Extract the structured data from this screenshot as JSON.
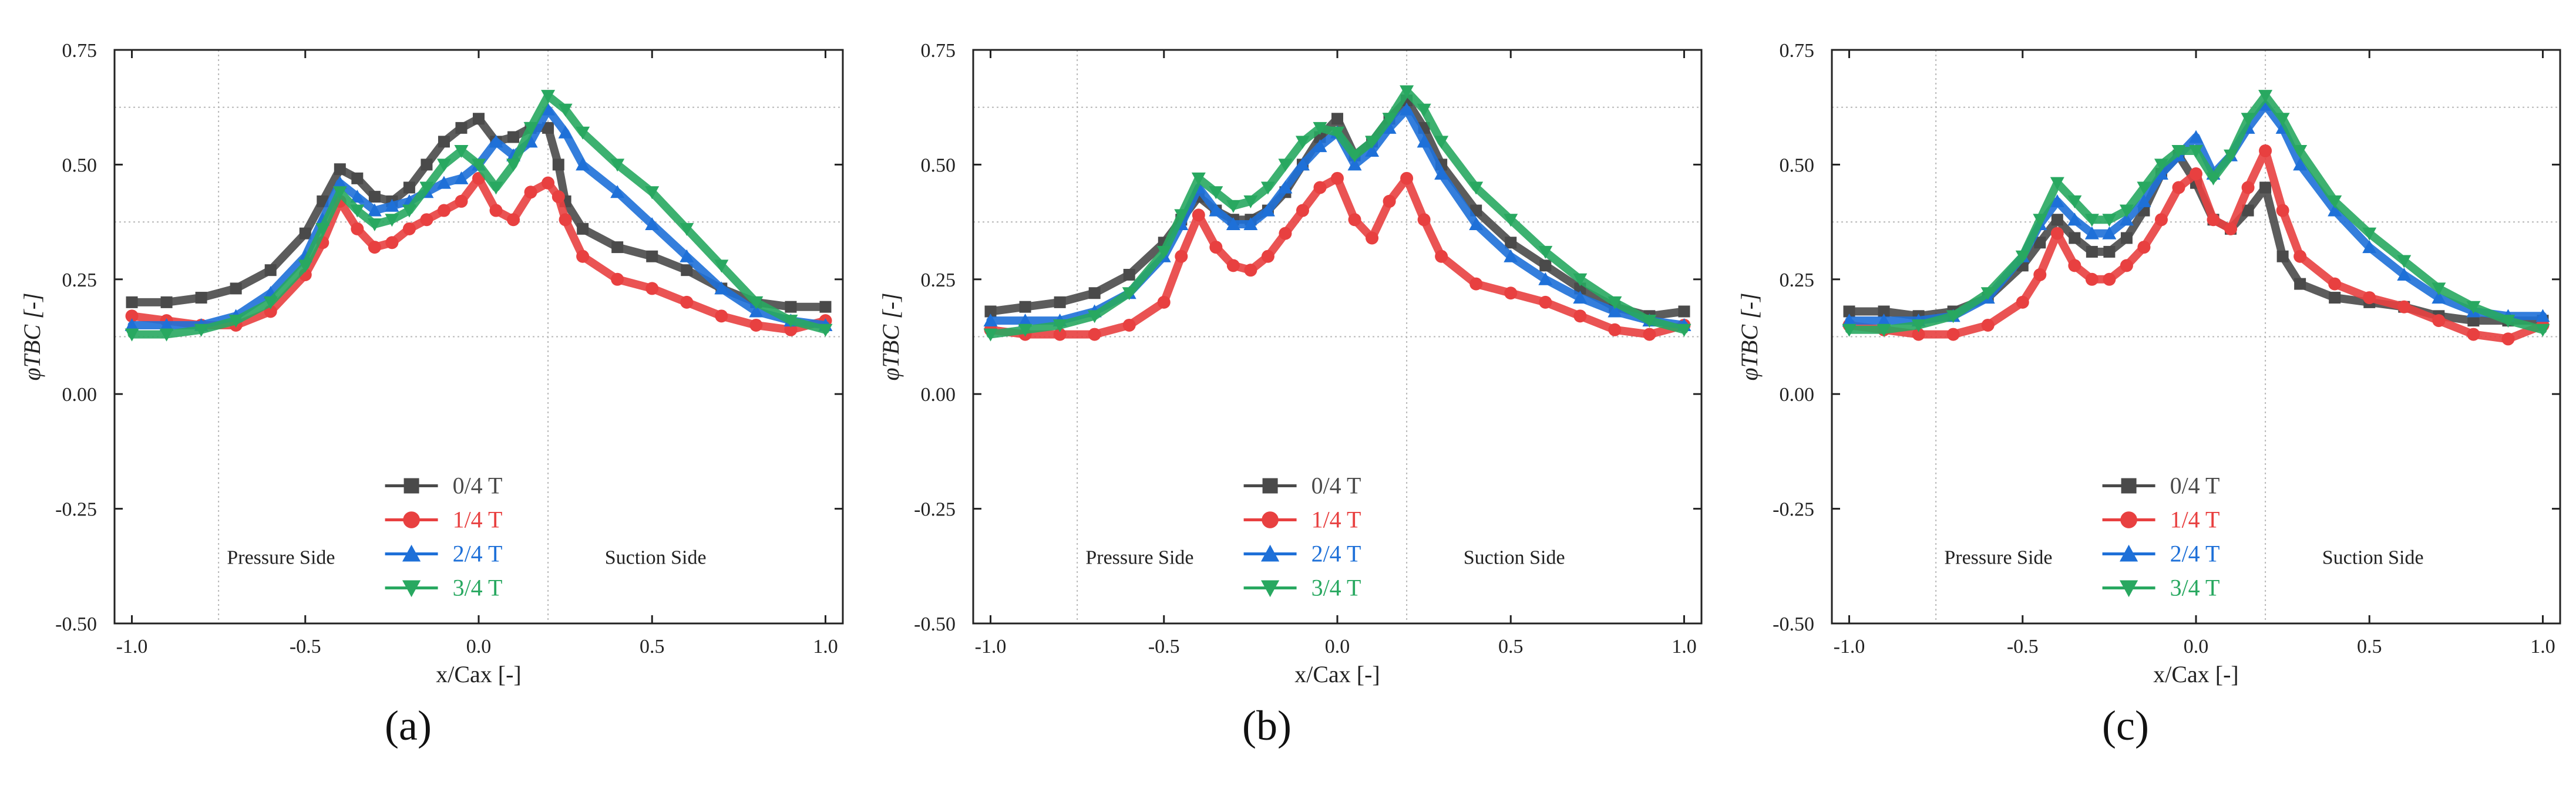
{
  "chart_data": [
    {
      "type": "line",
      "panel_label": "(a)",
      "xlabel": "x/Cax [-]",
      "ylabel": "φTBC [-]",
      "xlim": [
        -1.05,
        1.05
      ],
      "ylim": [
        -0.5,
        0.75
      ],
      "x_ticks": [
        "-1.0",
        "-0.5",
        "0.0",
        "0.5",
        "1.0"
      ],
      "y_ticks": [
        "0.75",
        "0.50",
        "0.25",
        "0.00",
        "-0.25",
        "-0.50"
      ],
      "annotations": [
        "Pressure Side",
        "Suction Side"
      ],
      "reference_lines_y": [
        0.625,
        0.375,
        0.125
      ],
      "reference_lines_x": [
        -0.75,
        0.2
      ],
      "legend_position": "center",
      "series": [
        {
          "name": "0/4 T",
          "color": "#4a4a4a",
          "marker": "square",
          "x": [
            -1.0,
            -0.9,
            -0.8,
            -0.7,
            -0.6,
            -0.5,
            -0.45,
            -0.4,
            -0.35,
            -0.3,
            -0.25,
            -0.2,
            -0.15,
            -0.1,
            -0.05,
            0.0,
            0.05,
            0.1,
            0.15,
            0.2,
            0.23,
            0.25,
            0.3,
            0.4,
            0.5,
            0.6,
            0.7,
            0.8,
            0.9,
            1.0
          ],
          "y": [
            0.2,
            0.2,
            0.21,
            0.23,
            0.27,
            0.35,
            0.42,
            0.49,
            0.47,
            0.43,
            0.42,
            0.45,
            0.5,
            0.55,
            0.58,
            0.6,
            0.55,
            0.56,
            0.58,
            0.58,
            0.5,
            0.42,
            0.36,
            0.32,
            0.3,
            0.27,
            0.23,
            0.2,
            0.19,
            0.19
          ]
        },
        {
          "name": "1/4 T",
          "color": "#e84040",
          "marker": "circle",
          "x": [
            -1.0,
            -0.9,
            -0.8,
            -0.7,
            -0.6,
            -0.5,
            -0.45,
            -0.4,
            -0.35,
            -0.3,
            -0.25,
            -0.2,
            -0.15,
            -0.1,
            -0.05,
            0.0,
            0.05,
            0.1,
            0.15,
            0.2,
            0.23,
            0.25,
            0.3,
            0.4,
            0.5,
            0.6,
            0.7,
            0.8,
            0.9,
            1.0
          ],
          "y": [
            0.17,
            0.16,
            0.15,
            0.15,
            0.18,
            0.26,
            0.33,
            0.42,
            0.36,
            0.32,
            0.33,
            0.36,
            0.38,
            0.4,
            0.42,
            0.47,
            0.4,
            0.38,
            0.44,
            0.46,
            0.43,
            0.38,
            0.3,
            0.25,
            0.23,
            0.2,
            0.17,
            0.15,
            0.14,
            0.16
          ]
        },
        {
          "name": "2/4 T",
          "color": "#1e70d8",
          "marker": "triangle-up",
          "x": [
            -1.0,
            -0.9,
            -0.8,
            -0.7,
            -0.6,
            -0.5,
            -0.45,
            -0.4,
            -0.35,
            -0.3,
            -0.25,
            -0.2,
            -0.15,
            -0.1,
            -0.05,
            0.0,
            0.05,
            0.1,
            0.15,
            0.2,
            0.25,
            0.3,
            0.4,
            0.5,
            0.6,
            0.7,
            0.8,
            0.9,
            1.0
          ],
          "y": [
            0.15,
            0.15,
            0.15,
            0.17,
            0.22,
            0.3,
            0.38,
            0.46,
            0.43,
            0.4,
            0.41,
            0.42,
            0.44,
            0.46,
            0.47,
            0.5,
            0.55,
            0.52,
            0.55,
            0.62,
            0.57,
            0.5,
            0.44,
            0.37,
            0.3,
            0.23,
            0.18,
            0.16,
            0.15
          ]
        },
        {
          "name": "3/4 T",
          "color": "#28a860",
          "marker": "triangle-down",
          "x": [
            -1.0,
            -0.9,
            -0.8,
            -0.7,
            -0.6,
            -0.5,
            -0.45,
            -0.4,
            -0.35,
            -0.3,
            -0.25,
            -0.2,
            -0.15,
            -0.1,
            -0.05,
            0.0,
            0.05,
            0.1,
            0.15,
            0.2,
            0.25,
            0.3,
            0.4,
            0.5,
            0.6,
            0.7,
            0.8,
            0.9,
            1.0
          ],
          "y": [
            0.13,
            0.13,
            0.14,
            0.16,
            0.2,
            0.28,
            0.36,
            0.44,
            0.4,
            0.37,
            0.38,
            0.4,
            0.45,
            0.5,
            0.53,
            0.5,
            0.45,
            0.5,
            0.58,
            0.65,
            0.62,
            0.57,
            0.5,
            0.44,
            0.36,
            0.28,
            0.2,
            0.16,
            0.14
          ]
        }
      ]
    },
    {
      "type": "line",
      "panel_label": "(b)",
      "xlabel": "x/Cax [-]",
      "ylabel": "φTBC [-]",
      "xlim": [
        -1.05,
        1.05
      ],
      "ylim": [
        -0.5,
        0.75
      ],
      "x_ticks": [
        "-1.0",
        "-0.5",
        "0.0",
        "0.5",
        "1.0"
      ],
      "y_ticks": [
        "0.75",
        "0.50",
        "0.25",
        "0.00",
        "-0.25",
        "-0.50"
      ],
      "annotations": [
        "Pressure Side",
        "Suction Side"
      ],
      "reference_lines_y": [
        0.625,
        0.375,
        0.125
      ],
      "reference_lines_x": [
        -0.75,
        0.2
      ],
      "legend_position": "center",
      "series": [
        {
          "name": "0/4 T",
          "color": "#4a4a4a",
          "marker": "square",
          "x": [
            -1.0,
            -0.9,
            -0.8,
            -0.7,
            -0.6,
            -0.5,
            -0.45,
            -0.4,
            -0.35,
            -0.3,
            -0.25,
            -0.2,
            -0.15,
            -0.1,
            -0.05,
            0.0,
            0.05,
            0.1,
            0.15,
            0.2,
            0.25,
            0.3,
            0.4,
            0.5,
            0.6,
            0.7,
            0.8,
            0.9,
            1.0
          ],
          "y": [
            0.18,
            0.19,
            0.2,
            0.22,
            0.26,
            0.33,
            0.38,
            0.43,
            0.4,
            0.38,
            0.38,
            0.4,
            0.44,
            0.5,
            0.56,
            0.6,
            0.52,
            0.55,
            0.6,
            0.64,
            0.58,
            0.5,
            0.4,
            0.33,
            0.28,
            0.23,
            0.19,
            0.17,
            0.18
          ]
        },
        {
          "name": "1/4 T",
          "color": "#e84040",
          "marker": "circle",
          "x": [
            -1.0,
            -0.9,
            -0.8,
            -0.7,
            -0.6,
            -0.5,
            -0.45,
            -0.4,
            -0.35,
            -0.3,
            -0.25,
            -0.2,
            -0.15,
            -0.1,
            -0.05,
            0.0,
            0.05,
            0.1,
            0.15,
            0.2,
            0.25,
            0.3,
            0.4,
            0.5,
            0.6,
            0.7,
            0.8,
            0.9,
            1.0
          ],
          "y": [
            0.14,
            0.13,
            0.13,
            0.13,
            0.15,
            0.2,
            0.3,
            0.39,
            0.32,
            0.28,
            0.27,
            0.3,
            0.35,
            0.4,
            0.45,
            0.47,
            0.38,
            0.34,
            0.42,
            0.47,
            0.38,
            0.3,
            0.24,
            0.22,
            0.2,
            0.17,
            0.14,
            0.13,
            0.15
          ]
        },
        {
          "name": "2/4 T",
          "color": "#1e70d8",
          "marker": "triangle-up",
          "x": [
            -1.0,
            -0.9,
            -0.8,
            -0.7,
            -0.6,
            -0.5,
            -0.45,
            -0.4,
            -0.35,
            -0.3,
            -0.25,
            -0.2,
            -0.15,
            -0.1,
            -0.05,
            0.0,
            0.05,
            0.1,
            0.15,
            0.2,
            0.25,
            0.3,
            0.4,
            0.5,
            0.6,
            0.7,
            0.8,
            0.9,
            1.0
          ],
          "y": [
            0.16,
            0.16,
            0.16,
            0.18,
            0.22,
            0.3,
            0.37,
            0.45,
            0.4,
            0.37,
            0.37,
            0.4,
            0.45,
            0.5,
            0.54,
            0.57,
            0.5,
            0.53,
            0.58,
            0.62,
            0.55,
            0.48,
            0.37,
            0.3,
            0.25,
            0.21,
            0.18,
            0.16,
            0.15
          ]
        },
        {
          "name": "3/4 T",
          "color": "#28a860",
          "marker": "triangle-down",
          "x": [
            -1.0,
            -0.9,
            -0.8,
            -0.7,
            -0.6,
            -0.5,
            -0.45,
            -0.4,
            -0.35,
            -0.3,
            -0.25,
            -0.2,
            -0.15,
            -0.1,
            -0.05,
            0.0,
            0.05,
            0.1,
            0.15,
            0.2,
            0.25,
            0.3,
            0.4,
            0.5,
            0.6,
            0.7,
            0.8,
            0.9,
            1.0
          ],
          "y": [
            0.13,
            0.14,
            0.15,
            0.17,
            0.22,
            0.31,
            0.39,
            0.47,
            0.44,
            0.41,
            0.42,
            0.45,
            0.5,
            0.55,
            0.58,
            0.57,
            0.52,
            0.55,
            0.6,
            0.66,
            0.62,
            0.55,
            0.45,
            0.38,
            0.31,
            0.25,
            0.2,
            0.16,
            0.14
          ]
        }
      ]
    },
    {
      "type": "line",
      "panel_label": "(c)",
      "xlabel": "x/Cax [-]",
      "ylabel": "φTBC [-]",
      "xlim": [
        -1.05,
        1.05
      ],
      "ylim": [
        -0.5,
        0.75
      ],
      "x_ticks": [
        "-1.0",
        "-0.5",
        "0.0",
        "0.5",
        "1.0"
      ],
      "y_ticks": [
        "0.75",
        "0.50",
        "0.25",
        "0.00",
        "-0.25",
        "-0.50"
      ],
      "annotations": [
        "Pressure Side",
        "Suction Side"
      ],
      "reference_lines_y": [
        0.625,
        0.375,
        0.125
      ],
      "reference_lines_x": [
        -0.75,
        0.2
      ],
      "legend_position": "center",
      "series": [
        {
          "name": "0/4 T",
          "color": "#4a4a4a",
          "marker": "square",
          "x": [
            -1.0,
            -0.9,
            -0.8,
            -0.7,
            -0.6,
            -0.5,
            -0.45,
            -0.4,
            -0.35,
            -0.3,
            -0.25,
            -0.2,
            -0.15,
            -0.1,
            -0.05,
            0.0,
            0.05,
            0.1,
            0.15,
            0.2,
            0.25,
            0.3,
            0.4,
            0.5,
            0.6,
            0.7,
            0.8,
            0.9,
            1.0
          ],
          "y": [
            0.18,
            0.18,
            0.17,
            0.18,
            0.21,
            0.28,
            0.33,
            0.38,
            0.34,
            0.31,
            0.31,
            0.34,
            0.4,
            0.48,
            0.52,
            0.46,
            0.38,
            0.36,
            0.4,
            0.45,
            0.3,
            0.24,
            0.21,
            0.2,
            0.19,
            0.17,
            0.16,
            0.16,
            0.16
          ]
        },
        {
          "name": "1/4 T",
          "color": "#e84040",
          "marker": "circle",
          "x": [
            -1.0,
            -0.9,
            -0.8,
            -0.7,
            -0.6,
            -0.5,
            -0.45,
            -0.4,
            -0.35,
            -0.3,
            -0.25,
            -0.2,
            -0.15,
            -0.1,
            -0.05,
            0.0,
            0.05,
            0.1,
            0.15,
            0.2,
            0.25,
            0.3,
            0.4,
            0.5,
            0.6,
            0.7,
            0.8,
            0.9,
            1.0
          ],
          "y": [
            0.15,
            0.14,
            0.13,
            0.13,
            0.15,
            0.2,
            0.26,
            0.35,
            0.28,
            0.25,
            0.25,
            0.28,
            0.32,
            0.38,
            0.45,
            0.48,
            0.38,
            0.36,
            0.45,
            0.53,
            0.4,
            0.3,
            0.24,
            0.21,
            0.19,
            0.16,
            0.13,
            0.12,
            0.15
          ]
        },
        {
          "name": "2/4 T",
          "color": "#1e70d8",
          "marker": "triangle-up",
          "x": [
            -1.0,
            -0.9,
            -0.8,
            -0.7,
            -0.6,
            -0.5,
            -0.45,
            -0.4,
            -0.35,
            -0.3,
            -0.25,
            -0.2,
            -0.15,
            -0.1,
            -0.05,
            0.0,
            0.05,
            0.1,
            0.15,
            0.2,
            0.25,
            0.3,
            0.4,
            0.5,
            0.6,
            0.7,
            0.8,
            0.9,
            1.0
          ],
          "y": [
            0.16,
            0.16,
            0.16,
            0.17,
            0.21,
            0.3,
            0.37,
            0.42,
            0.38,
            0.35,
            0.35,
            0.38,
            0.42,
            0.48,
            0.52,
            0.56,
            0.48,
            0.52,
            0.58,
            0.63,
            0.58,
            0.5,
            0.4,
            0.32,
            0.26,
            0.21,
            0.18,
            0.17,
            0.17
          ]
        },
        {
          "name": "3/4 T",
          "color": "#28a860",
          "marker": "triangle-down",
          "x": [
            -1.0,
            -0.9,
            -0.8,
            -0.7,
            -0.6,
            -0.5,
            -0.45,
            -0.4,
            -0.35,
            -0.3,
            -0.25,
            -0.2,
            -0.15,
            -0.1,
            -0.05,
            0.0,
            0.05,
            0.1,
            0.15,
            0.2,
            0.25,
            0.3,
            0.4,
            0.5,
            0.6,
            0.7,
            0.8,
            0.9,
            1.0
          ],
          "y": [
            0.14,
            0.14,
            0.15,
            0.17,
            0.22,
            0.3,
            0.38,
            0.46,
            0.42,
            0.38,
            0.38,
            0.4,
            0.45,
            0.5,
            0.53,
            0.53,
            0.47,
            0.52,
            0.6,
            0.65,
            0.6,
            0.53,
            0.42,
            0.35,
            0.29,
            0.23,
            0.19,
            0.16,
            0.14
          ]
        }
      ]
    }
  ]
}
